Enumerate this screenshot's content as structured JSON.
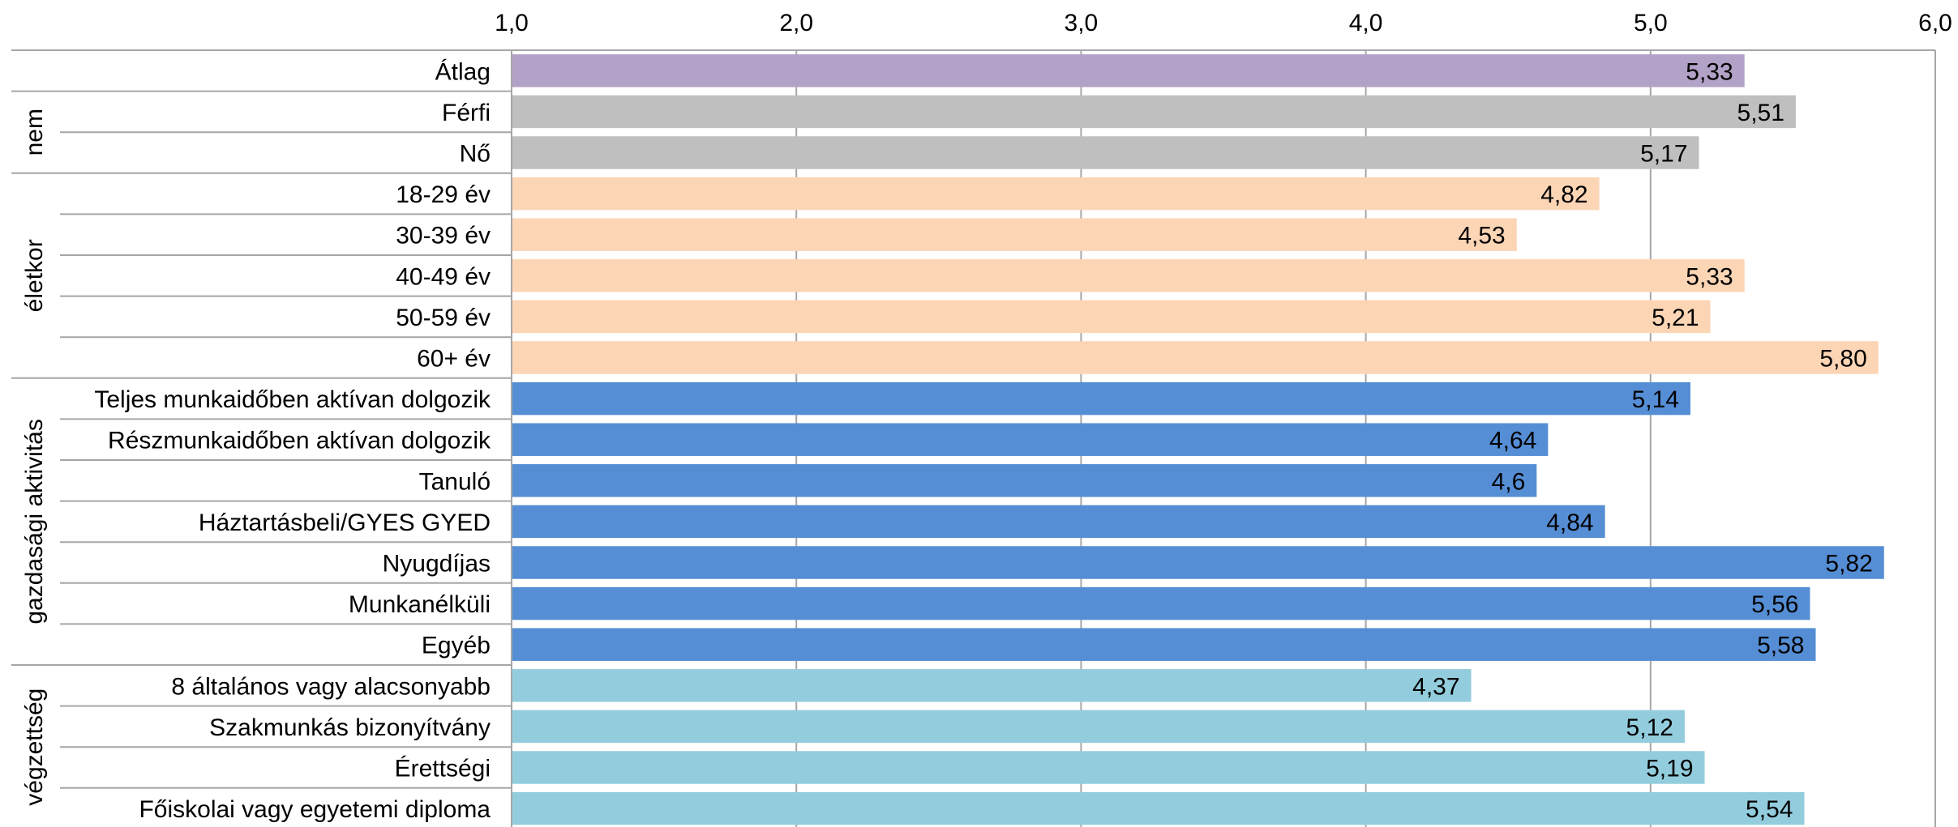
{
  "chart_data": {
    "type": "bar",
    "orientation": "horizontal",
    "xlim": [
      1.0,
      6.0
    ],
    "xticks": [
      "1,0",
      "2,0",
      "3,0",
      "4,0",
      "5,0",
      "6,0"
    ],
    "xtick_values": [
      1,
      2,
      3,
      4,
      5,
      6
    ],
    "xaxis_position": "top",
    "grid": true,
    "colors": {
      "atlag": "#b3a2c7",
      "nem": "#bfbfbf",
      "eletkor": "#fcd5b5",
      "gazdasagi": "#558ed5",
      "vegzettseg": "#93cddd",
      "grid": "#a6a6a6"
    },
    "groups": [
      {
        "name": "",
        "color_key": "atlag",
        "items": [
          {
            "label": "Átlag",
            "value": 5.33,
            "value_label": "5,33"
          }
        ]
      },
      {
        "name": "nem",
        "color_key": "nem",
        "items": [
          {
            "label": "Férfi",
            "value": 5.51,
            "value_label": "5,51"
          },
          {
            "label": "Nő",
            "value": 5.17,
            "value_label": "5,17"
          }
        ]
      },
      {
        "name": "életkor",
        "color_key": "eletkor",
        "items": [
          {
            "label": "18-29 év",
            "value": 4.82,
            "value_label": "4,82"
          },
          {
            "label": "30-39 év",
            "value": 4.53,
            "value_label": "4,53"
          },
          {
            "label": "40-49 év",
            "value": 5.33,
            "value_label": "5,33"
          },
          {
            "label": "50-59 év",
            "value": 5.21,
            "value_label": "5,21"
          },
          {
            "label": "60+ év",
            "value": 5.8,
            "value_label": "5,80"
          }
        ]
      },
      {
        "name": "gazdasági aktivitás",
        "color_key": "gazdasagi",
        "items": [
          {
            "label": "Teljes munkaidőben aktívan dolgozik",
            "value": 5.14,
            "value_label": "5,14"
          },
          {
            "label": "Részmunkaidőben aktívan dolgozik",
            "value": 4.64,
            "value_label": "4,64"
          },
          {
            "label": "Tanuló",
            "value": 4.6,
            "value_label": "4,6"
          },
          {
            "label": "Háztartásbeli/GYES GYED",
            "value": 4.84,
            "value_label": "4,84"
          },
          {
            "label": "Nyugdíjas",
            "value": 5.82,
            "value_label": "5,82"
          },
          {
            "label": "Munkanélküli",
            "value": 5.56,
            "value_label": "5,56"
          },
          {
            "label": "Egyéb",
            "value": 5.58,
            "value_label": "5,58"
          }
        ]
      },
      {
        "name": "végzettség",
        "color_key": "vegzettseg",
        "items": [
          {
            "label": "8 általános vagy alacsonyabb",
            "value": 4.37,
            "value_label": "4,37"
          },
          {
            "label": "Szakmunkás bizonyítvány",
            "value": 5.12,
            "value_label": "5,12"
          },
          {
            "label": "Érettségi",
            "value": 5.19,
            "value_label": "5,19"
          },
          {
            "label": "Főiskolai vagy egyetemi diploma",
            "value": 5.54,
            "value_label": "5,54"
          }
        ]
      }
    ]
  }
}
